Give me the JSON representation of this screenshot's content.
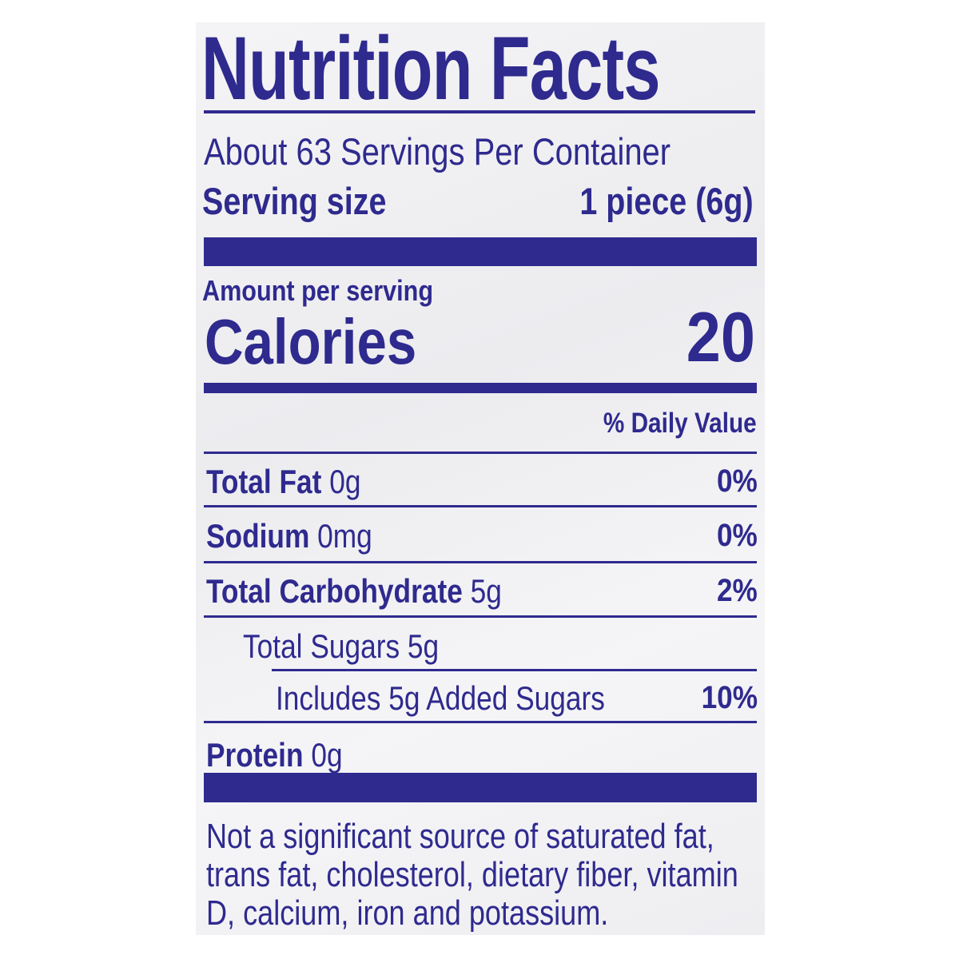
{
  "label": {
    "title": "Nutrition Facts",
    "servings_per_container": "About 63 Servings Per Container",
    "serving_size_label": "Serving size",
    "serving_size_value": "1 piece (6g)",
    "amount_per_serving": "Amount per serving",
    "calories_label": "Calories",
    "calories_value": "20",
    "daily_value_header": "% Daily Value",
    "nutrients": [
      {
        "name": "Total Fat",
        "amount": "0g",
        "dv": "0%"
      },
      {
        "name": "Sodium",
        "amount": "0mg",
        "dv": "0%"
      },
      {
        "name": "Total Carbohydrate",
        "amount": "5g",
        "dv": "2%"
      },
      {
        "name": "Total Sugars 5g",
        "amount": "",
        "dv": ""
      },
      {
        "name": "Includes 5g Added Sugars",
        "amount": "",
        "dv": "10%"
      },
      {
        "name": "Protein",
        "amount": "0g",
        "dv": ""
      }
    ],
    "footnote": [
      "Not a significant source of saturated fat,",
      "trans fat, cholesterol, dietary fiber, vitamin",
      "D, calcium, iron and potassium."
    ],
    "ink_color": "#2f2a8e"
  }
}
